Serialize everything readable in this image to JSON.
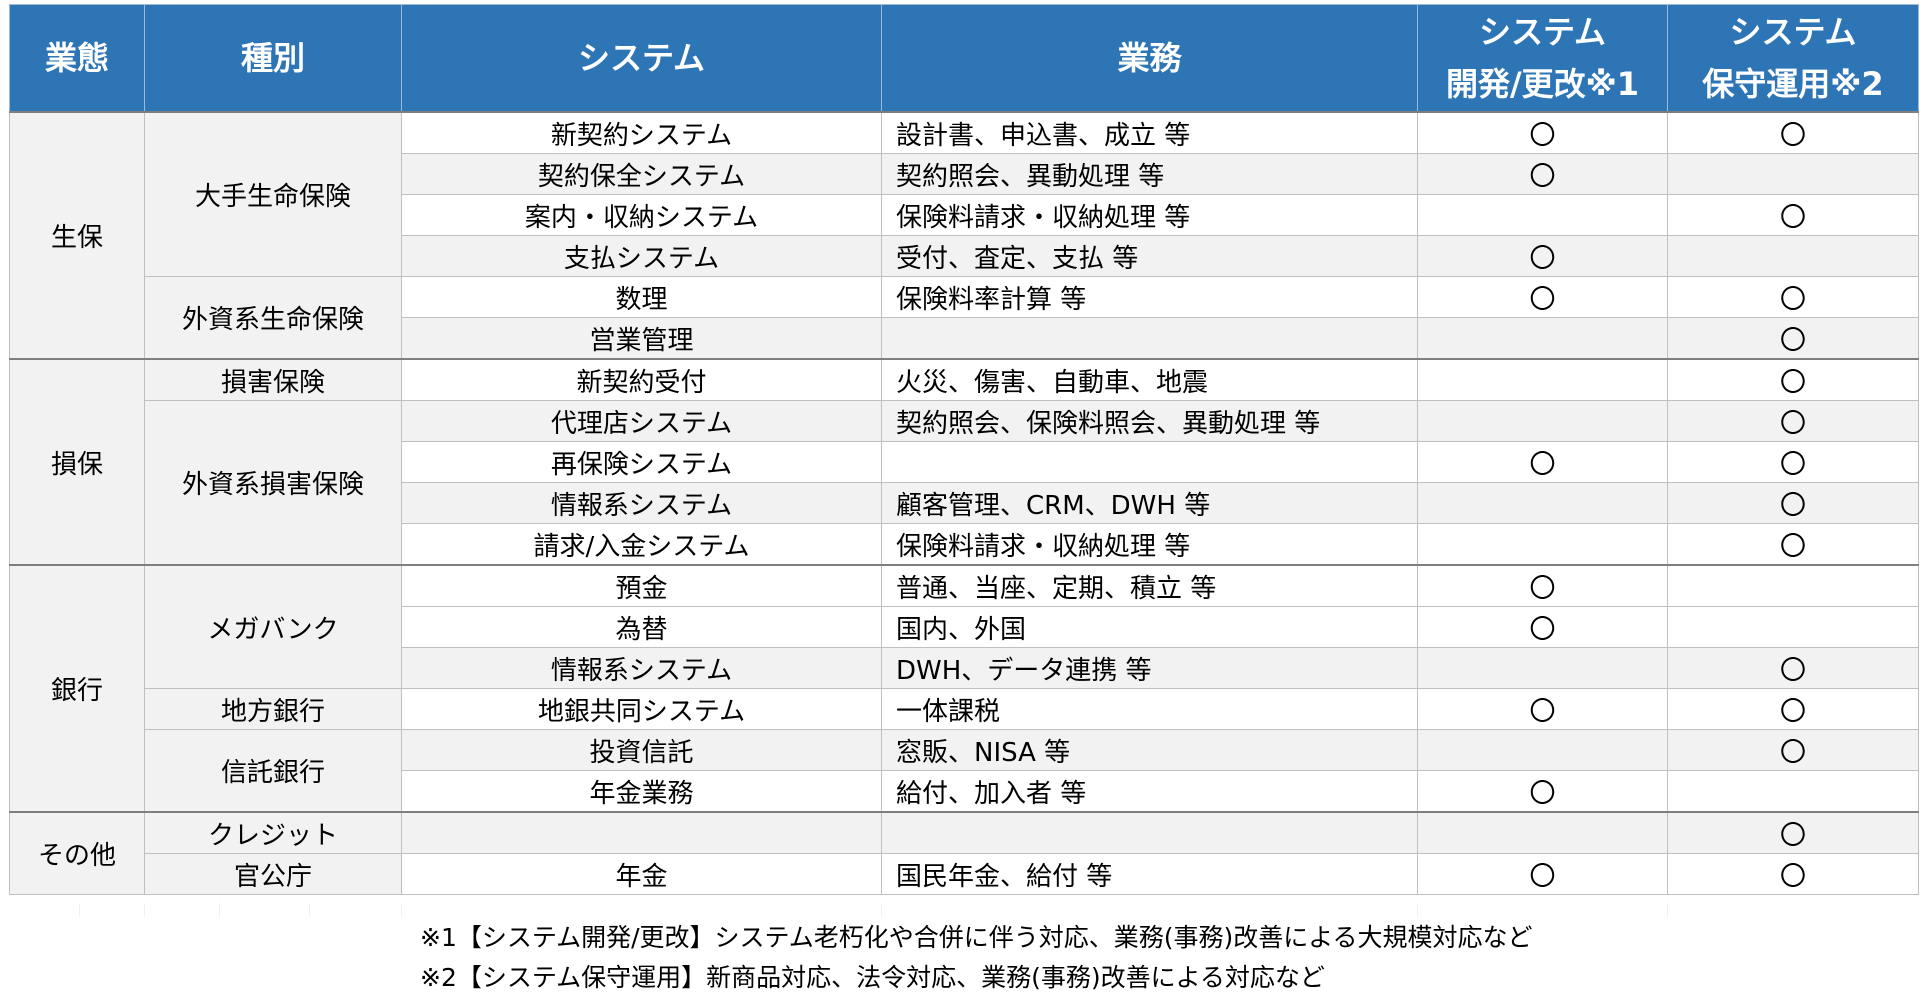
{
  "headers": {
    "gyotai": "業態",
    "shubetsu": "種別",
    "system": "システム",
    "gyomu": "業務",
    "dev_line1": "システム",
    "dev_line2": "開発/更改※1",
    "ops_line1": "システム",
    "ops_line2": "保守運用※2"
  },
  "groups": {
    "seiho": "生保",
    "sonpo": "損保",
    "ginko": "銀行",
    "sonota": "その他"
  },
  "types": {
    "ote_seimei": "大手生命保険",
    "gaishi_seimei": "外資系生命保険",
    "songai": "損害保険",
    "gaishi_songai": "外資系損害保険",
    "megabank": "メガバンク",
    "chiho": "地方銀行",
    "shintaku": "信託銀行",
    "credit": "クレジット",
    "kankocho": "官公庁"
  },
  "rows": [
    {
      "system": "新契約システム",
      "gyomu": "設計書、申込書、成立 等",
      "dev": "〇",
      "ops": "〇"
    },
    {
      "system": "契約保全システム",
      "gyomu": "契約照会、異動処理 等",
      "dev": "〇",
      "ops": ""
    },
    {
      "system": "案内・収納システム",
      "gyomu": "保険料請求・収納処理 等",
      "dev": "",
      "ops": "〇"
    },
    {
      "system": "支払システム",
      "gyomu": "受付、査定、支払 等",
      "dev": "〇",
      "ops": ""
    },
    {
      "system": "数理",
      "gyomu": "保険料率計算 等",
      "dev": "〇",
      "ops": "〇"
    },
    {
      "system": "営業管理",
      "gyomu": "",
      "dev": "",
      "ops": "〇"
    },
    {
      "system": "新契約受付",
      "gyomu": "火災、傷害、自動車、地震",
      "dev": "",
      "ops": "〇"
    },
    {
      "system": "代理店システム",
      "gyomu": "契約照会、保険料照会、異動処理 等",
      "dev": "",
      "ops": "〇"
    },
    {
      "system": "再保険システム",
      "gyomu": "",
      "dev": "〇",
      "ops": "〇"
    },
    {
      "system": "情報系システム",
      "gyomu": "顧客管理、CRM、DWH 等",
      "dev": "",
      "ops": "〇"
    },
    {
      "system": "請求/入金システム",
      "gyomu": "保険料請求・収納処理 等",
      "dev": "",
      "ops": "〇"
    },
    {
      "system": "預金",
      "gyomu": "普通、当座、定期、積立 等",
      "dev": "〇",
      "ops": ""
    },
    {
      "system": "為替",
      "gyomu": "国内、外国",
      "dev": "〇",
      "ops": ""
    },
    {
      "system": "情報系システム",
      "gyomu": "DWH、データ連携 等",
      "dev": "",
      "ops": "〇"
    },
    {
      "system": "地銀共同システム",
      "gyomu": "一体課税",
      "dev": "〇",
      "ops": "〇"
    },
    {
      "system": "投資信託",
      "gyomu": "窓販、NISA 等",
      "dev": "",
      "ops": "〇"
    },
    {
      "system": "年金業務",
      "gyomu": "給付、加入者 等",
      "dev": "〇",
      "ops": ""
    },
    {
      "system": "",
      "gyomu": "",
      "dev": "",
      "ops": "〇"
    },
    {
      "system": "年金",
      "gyomu": "国民年金、給付 等",
      "dev": "〇",
      "ops": "〇"
    }
  ],
  "notes": {
    "note1": "※1【システム開発/更改】システム老朽化や合併に伴う対応、業務(事務)改善による大規模対応など",
    "note2": "※2【システム保守運用】新商品対応、法令対応、業務(事務)改善による対応など"
  }
}
